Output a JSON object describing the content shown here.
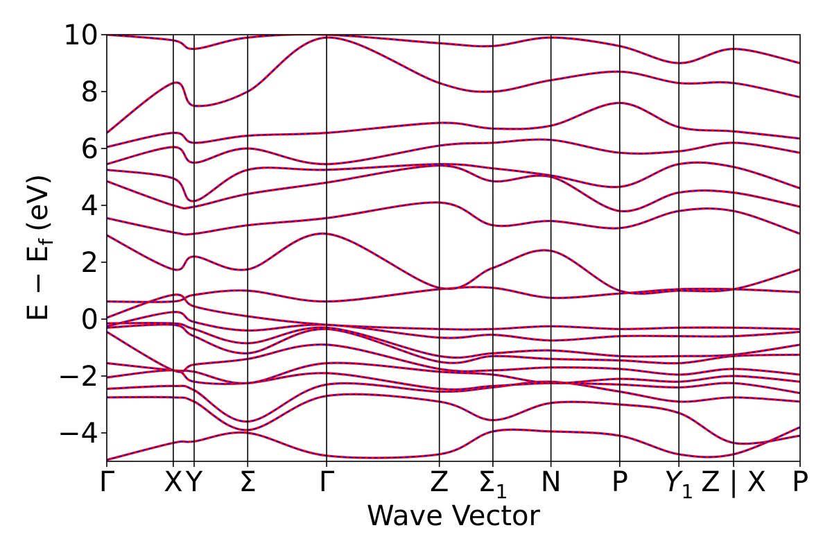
{
  "chart_data": {
    "type": "line",
    "xlabel": "Wave Vector",
    "ylabel": "E − E",
    "ylabel_subscript": "f",
    "ylabel_unit": "(eV)",
    "ylim": [
      -5,
      10
    ],
    "yticks": [
      {
        "value": 10,
        "label": "10"
      },
      {
        "value": 8,
        "label": "8"
      },
      {
        "value": 6,
        "label": "6"
      },
      {
        "value": 4,
        "label": "4"
      },
      {
        "value": 2,
        "label": "2"
      },
      {
        "value": 0,
        "label": "0"
      },
      {
        "value": -2,
        "label": "−2"
      },
      {
        "value": -4,
        "label": "−4"
      }
    ],
    "xlim": [
      0,
      12.3
    ],
    "kpath": [
      {
        "x": 0.0,
        "label": "Γ",
        "line": false
      },
      {
        "x": 1.18,
        "label": "X",
        "line": true
      },
      {
        "x": 1.55,
        "label": "Y",
        "line": true
      },
      {
        "x": 2.5,
        "label": "Σ",
        "line": true
      },
      {
        "x": 3.9,
        "label": "Γ",
        "line": true
      },
      {
        "x": 5.9,
        "label": "Z",
        "line": true
      },
      {
        "x": 6.85,
        "label": "Σ",
        "sub": "1",
        "line": true
      },
      {
        "x": 7.88,
        "label": "N",
        "line": true
      },
      {
        "x": 9.1,
        "label": "P",
        "line": true
      },
      {
        "x": 10.15,
        "label": "Y",
        "sub": "1",
        "italic": true,
        "line": true
      },
      {
        "x": 11.12,
        "label": "Z | X",
        "line": true
      },
      {
        "x": 12.3,
        "label": "P",
        "line": false
      }
    ],
    "series_styles": [
      {
        "name": "",
        "color": "#ff0000",
        "width": 3.2,
        "dash": ""
      },
      {
        "name": "",
        "color": "#0000ff",
        "width": 1.6,
        "dash": "4,5"
      }
    ],
    "bands": [
      {
        "x": [
          0,
          1.18,
          1.55,
          2.5,
          3.9,
          5.9,
          6.85,
          7.88,
          9.1,
          10.15,
          11.12,
          12.3
        ],
        "y": [
          -4.95,
          -4.35,
          -4.3,
          -4.0,
          -4.8,
          -4.75,
          -3.95,
          -3.95,
          -4.1,
          -4.75,
          -4.75,
          -3.8
        ]
      },
      {
        "x": [
          0,
          1.18,
          1.55,
          2.5,
          3.9,
          5.9,
          6.85,
          7.88,
          9.1,
          10.15,
          11.12,
          12.3
        ],
        "y": [
          -2.75,
          -2.75,
          -2.9,
          -3.9,
          -2.7,
          -2.9,
          -3.55,
          -2.95,
          -3.0,
          -3.3,
          -4.35,
          -4.1
        ]
      },
      {
        "x": [
          0,
          1.18,
          1.55,
          2.5,
          3.9,
          5.9,
          6.85,
          7.88,
          9.1,
          10.15,
          11.12,
          12.3
        ],
        "y": [
          -2.45,
          -2.35,
          -2.5,
          -3.6,
          -2.3,
          -2.55,
          -2.4,
          -2.2,
          -2.55,
          -2.9,
          -2.75,
          -2.9
        ]
      },
      {
        "x": [
          0,
          1.18,
          1.55,
          2.5,
          3.9,
          5.9,
          6.85,
          7.88,
          9.1,
          10.15,
          11.12,
          12.3
        ],
        "y": [
          -2.05,
          -1.8,
          -2.2,
          -2.25,
          -1.9,
          -2.45,
          -2.35,
          -2.25,
          -2.3,
          -2.4,
          -2.25,
          -2.6
        ]
      },
      {
        "x": [
          0,
          1.18,
          1.55,
          2.5,
          3.9,
          5.9,
          6.85,
          7.88,
          9.1,
          10.15,
          11.12,
          12.3
        ],
        "y": [
          -1.55,
          -1.8,
          -1.85,
          -2.25,
          -1.55,
          -1.85,
          -1.95,
          -2.25,
          -2.1,
          -2.2,
          -2.0,
          -2.2
        ]
      },
      {
        "x": [
          0,
          1.18,
          1.55,
          2.5,
          3.9,
          5.9,
          6.85,
          7.88,
          9.1,
          10.15,
          11.12,
          12.3
        ],
        "y": [
          -0.45,
          -1.8,
          -1.6,
          -1.4,
          -0.9,
          -1.75,
          -1.8,
          -1.7,
          -1.75,
          -1.95,
          -1.75,
          -1.95
        ]
      },
      {
        "x": [
          0,
          1.18,
          1.55,
          2.5,
          3.9,
          5.9,
          6.85,
          7.88,
          9.1,
          10.15,
          11.12,
          12.3
        ],
        "y": [
          -0.3,
          -0.2,
          -0.6,
          -1.2,
          -0.35,
          -1.5,
          -1.3,
          -1.4,
          -1.45,
          -1.55,
          -1.3,
          -1.25
        ]
      },
      {
        "x": [
          0,
          1.18,
          1.55,
          2.5,
          3.9,
          5.9,
          6.85,
          7.88,
          9.1,
          10.15,
          11.12,
          12.3
        ],
        "y": [
          -0.15,
          -0.15,
          -0.35,
          -0.85,
          -0.3,
          -1.3,
          -1.2,
          -1.1,
          -1.3,
          -1.3,
          -1.25,
          -0.9
        ]
      },
      {
        "x": [
          0,
          1.18,
          1.55,
          2.5,
          3.9,
          5.9,
          6.85,
          7.88,
          9.1,
          10.15,
          11.12,
          12.3
        ],
        "y": [
          -0.25,
          0.25,
          -0.1,
          -0.4,
          -0.2,
          -0.65,
          -0.55,
          -0.75,
          -0.6,
          -0.6,
          -0.6,
          -0.45
        ]
      },
      {
        "x": [
          0,
          1.18,
          1.55,
          2.5,
          3.9,
          5.9,
          6.85,
          7.88,
          9.1,
          10.15,
          11.12,
          12.3
        ],
        "y": [
          0.05,
          0.85,
          0.45,
          0.1,
          -0.2,
          -0.35,
          -0.35,
          -0.25,
          -0.35,
          -0.3,
          -0.3,
          -0.35
        ]
      },
      {
        "x": [
          0,
          1.18,
          1.55,
          2.5,
          3.9,
          5.9,
          6.85,
          7.88,
          9.1,
          10.15,
          11.12,
          12.3
        ],
        "y": [
          0.62,
          0.62,
          0.85,
          1.0,
          0.62,
          1.05,
          1.1,
          0.75,
          0.9,
          1.05,
          1.05,
          0.95
        ]
      },
      {
        "x": [
          0,
          1.18,
          1.55,
          2.5,
          3.9,
          5.9,
          6.85,
          7.88,
          9.1,
          10.15,
          11.12,
          12.3
        ],
        "y": [
          2.95,
          1.75,
          2.2,
          1.75,
          3.0,
          1.1,
          1.8,
          2.4,
          1.0,
          1.0,
          1.05,
          1.75
        ]
      },
      {
        "x": [
          0,
          1.18,
          1.55,
          2.5,
          3.9,
          5.9,
          6.85,
          7.88,
          9.1,
          10.15,
          11.12,
          12.3
        ],
        "y": [
          3.55,
          3.05,
          3.0,
          3.3,
          3.55,
          4.1,
          3.3,
          3.45,
          3.2,
          3.8,
          3.8,
          3.0
        ]
      },
      {
        "x": [
          0,
          1.18,
          1.55,
          2.5,
          3.9,
          5.9,
          6.85,
          7.88,
          9.1,
          10.15,
          11.12,
          12.3
        ],
        "y": [
          4.85,
          4.0,
          3.95,
          4.4,
          4.8,
          5.4,
          4.85,
          5.0,
          3.8,
          4.45,
          4.45,
          3.95
        ]
      },
      {
        "x": [
          0,
          1.18,
          1.55,
          2.5,
          3.9,
          5.9,
          6.85,
          7.88,
          9.1,
          10.15,
          11.12,
          12.3
        ],
        "y": [
          5.25,
          4.95,
          4.15,
          5.25,
          5.25,
          5.45,
          5.3,
          5.05,
          4.65,
          5.45,
          5.35,
          4.6
        ]
      },
      {
        "x": [
          0,
          1.18,
          1.55,
          2.5,
          3.9,
          5.9,
          6.85,
          7.88,
          9.1,
          10.15,
          11.12,
          12.3
        ],
        "y": [
          5.45,
          6.05,
          5.5,
          6.0,
          5.45,
          6.1,
          6.2,
          6.3,
          5.85,
          5.9,
          6.2,
          5.85
        ]
      },
      {
        "x": [
          0,
          1.18,
          1.55,
          2.5,
          3.9,
          5.9,
          6.85,
          7.88,
          9.1,
          10.15,
          11.12,
          12.3
        ],
        "y": [
          6.05,
          6.55,
          6.2,
          6.45,
          6.55,
          6.9,
          6.7,
          6.8,
          7.6,
          6.75,
          6.6,
          6.35
        ]
      },
      {
        "x": [
          0,
          1.18,
          1.55,
          2.5,
          3.9,
          5.9,
          6.85,
          7.88,
          9.1,
          10.15,
          11.12,
          12.3
        ],
        "y": [
          6.55,
          8.3,
          7.5,
          8.0,
          9.9,
          8.3,
          8.0,
          8.4,
          8.7,
          8.3,
          8.3,
          7.8
        ]
      },
      {
        "x": [
          0,
          1.18,
          1.55,
          2.5,
          3.9,
          5.9,
          6.85,
          7.88,
          9.1,
          10.15,
          11.12,
          12.3
        ],
        "y": [
          10.0,
          9.8,
          9.5,
          9.9,
          10.0,
          9.7,
          9.6,
          9.9,
          9.6,
          9.0,
          9.5,
          9.0
        ]
      }
    ]
  }
}
